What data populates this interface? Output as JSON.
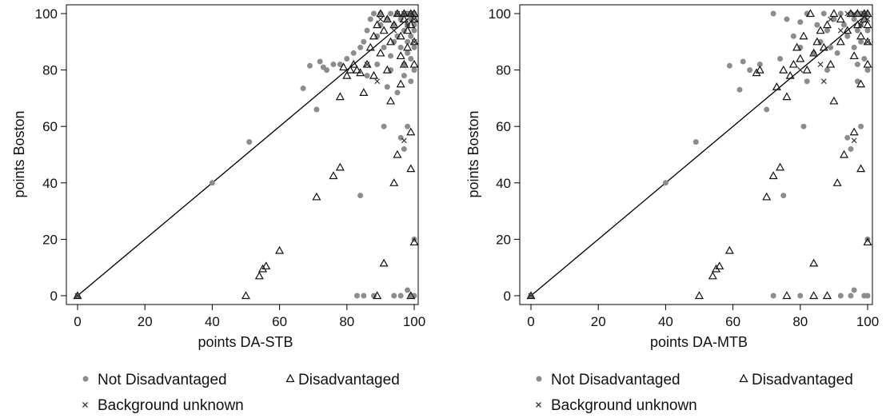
{
  "legend": {
    "not_disadvantaged": "Not Disadvantaged",
    "disadvantaged": "Disadvantaged",
    "background_unknown": "Background unknown"
  },
  "colors": {
    "not_disadvantaged": "#8c8c8c",
    "disadvantaged": "#111111",
    "background_unknown": "#333333",
    "diagonal": "#000000"
  },
  "chart_data": [
    {
      "type": "scatter",
      "xlabel": "points DA-STB",
      "ylabel": "points Boston",
      "xlim": [
        0,
        100
      ],
      "ylim": [
        0,
        100
      ],
      "xticks": [
        0,
        20,
        40,
        60,
        80,
        100
      ],
      "yticks": [
        0,
        20,
        40,
        60,
        80,
        100
      ],
      "grid": false,
      "legend_position": "bottom",
      "reference_line": {
        "from": [
          0,
          0
        ],
        "to": [
          100,
          100
        ]
      },
      "series": [
        {
          "name": "Not Disadvantaged",
          "marker": "circle",
          "points": [
            [
              0,
              0
            ],
            [
              40,
              40
            ],
            [
              51,
              54.5
            ],
            [
              67,
              73.5
            ],
            [
              69,
              81.5
            ],
            [
              71,
              66
            ],
            [
              72,
              83
            ],
            [
              73,
              81
            ],
            [
              74,
              80
            ],
            [
              76,
              82
            ],
            [
              78,
              82
            ],
            [
              80,
              84
            ],
            [
              82,
              86
            ],
            [
              84,
              88
            ],
            [
              84,
              35.5
            ],
            [
              83,
              0
            ],
            [
              85,
              0
            ],
            [
              88,
              0
            ],
            [
              86,
              94
            ],
            [
              87,
              98
            ],
            [
              88,
              100
            ],
            [
              89,
              92
            ],
            [
              90,
              96
            ],
            [
              90,
              100
            ],
            [
              91,
              88
            ],
            [
              91,
              60
            ],
            [
              92,
              98
            ],
            [
              93,
              100
            ],
            [
              93,
              85
            ],
            [
              94,
              96
            ],
            [
              94,
              90
            ],
            [
              95,
              100
            ],
            [
              95,
              92
            ],
            [
              96,
              98
            ],
            [
              96,
              88
            ],
            [
              96,
              56
            ],
            [
              97,
              52
            ],
            [
              97,
              100
            ],
            [
              97,
              94
            ],
            [
              97,
              82
            ],
            [
              97,
              78
            ],
            [
              98,
              100
            ],
            [
              98,
              96
            ],
            [
              98,
              90
            ],
            [
              98,
              86
            ],
            [
              98,
              60
            ],
            [
              98,
              2
            ],
            [
              99,
              100
            ],
            [
              99,
              98
            ],
            [
              99,
              92
            ],
            [
              99,
              84
            ],
            [
              99,
              76
            ],
            [
              99,
              0
            ],
            [
              100,
              100
            ],
            [
              100,
              96
            ],
            [
              100,
              94
            ],
            [
              100,
              88
            ],
            [
              100,
              80
            ],
            [
              100,
              20
            ],
            [
              100,
              0
            ],
            [
              93,
              80
            ],
            [
              95,
              72
            ],
            [
              92,
              74
            ],
            [
              89,
              82
            ],
            [
              86,
              78
            ],
            [
              85,
              90
            ],
            [
              94,
              0
            ],
            [
              96,
              0
            ]
          ]
        },
        {
          "name": "Disadvantaged",
          "marker": "triangle",
          "points": [
            [
              0,
              0
            ],
            [
              50,
              0
            ],
            [
              54,
              7
            ],
            [
              55,
              9.5
            ],
            [
              56,
              10.5
            ],
            [
              60,
              16
            ],
            [
              71,
              35
            ],
            [
              76,
              42.5
            ],
            [
              78,
              45.5
            ],
            [
              78,
              70.5
            ],
            [
              79,
              81
            ],
            [
              80,
              78
            ],
            [
              81,
              80
            ],
            [
              82,
              82
            ],
            [
              83,
              80
            ],
            [
              84,
              79
            ],
            [
              85,
              72
            ],
            [
              86,
              82
            ],
            [
              87,
              88
            ],
            [
              88,
              92
            ],
            [
              88,
              78
            ],
            [
              89,
              96
            ],
            [
              89,
              0
            ],
            [
              90,
              100
            ],
            [
              90,
              86
            ],
            [
              91,
              11.5
            ],
            [
              91,
              94
            ],
            [
              92,
              98
            ],
            [
              92,
              80
            ],
            [
              93,
              90
            ],
            [
              93,
              69
            ],
            [
              94,
              40
            ],
            [
              94,
              96
            ],
            [
              95,
              100
            ],
            [
              95,
              50
            ],
            [
              96,
              92
            ],
            [
              96,
              85
            ],
            [
              96,
              75
            ],
            [
              97,
              98
            ],
            [
              97,
              100
            ],
            [
              98,
              94
            ],
            [
              98,
              88
            ],
            [
              99,
              45
            ],
            [
              99,
              58
            ],
            [
              99,
              100
            ],
            [
              99,
              96
            ],
            [
              100,
              19
            ],
            [
              100,
              100
            ],
            [
              100,
              98
            ],
            [
              100,
              82
            ],
            [
              100,
              90
            ],
            [
              99,
              0
            ],
            [
              97,
              82
            ]
          ]
        },
        {
          "name": "Background unknown",
          "marker": "x",
          "points": [
            [
              0,
              0
            ],
            [
              86,
              82
            ],
            [
              89,
              76
            ],
            [
              90,
              98
            ],
            [
              94,
              94
            ],
            [
              95,
              100
            ],
            [
              97,
              100
            ],
            [
              97,
              55
            ],
            [
              98,
              96
            ],
            [
              99,
              100
            ],
            [
              100,
              90
            ],
            [
              100,
              98
            ]
          ]
        }
      ]
    },
    {
      "type": "scatter",
      "xlabel": "points DA-MTB",
      "ylabel": "points Boston",
      "xlim": [
        0,
        100
      ],
      "ylim": [
        0,
        100
      ],
      "xticks": [
        0,
        20,
        40,
        60,
        80,
        100
      ],
      "yticks": [
        0,
        20,
        40,
        60,
        80,
        100
      ],
      "grid": false,
      "legend_position": "bottom",
      "reference_line": {
        "from": [
          0,
          0
        ],
        "to": [
          100,
          100
        ]
      },
      "series": [
        {
          "name": "Not Disadvantaged",
          "marker": "circle",
          "points": [
            [
              0,
              0
            ],
            [
              40,
              40
            ],
            [
              49,
              54.5
            ],
            [
              59,
              81.5
            ],
            [
              62,
              73
            ],
            [
              63,
              83
            ],
            [
              65,
              80
            ],
            [
              68,
              82
            ],
            [
              70,
              66
            ],
            [
              72,
              100
            ],
            [
              74,
              84
            ],
            [
              75,
              35.5
            ],
            [
              76,
              98
            ],
            [
              78,
              92
            ],
            [
              80,
              88
            ],
            [
              80,
              97
            ],
            [
              81,
              60
            ],
            [
              82,
              100
            ],
            [
              84,
              86
            ],
            [
              85,
              96
            ],
            [
              86,
              90
            ],
            [
              87,
              100
            ],
            [
              88,
              94
            ],
            [
              89,
              88
            ],
            [
              90,
              98
            ],
            [
              91,
              86
            ],
            [
              92,
              100
            ],
            [
              93,
              96
            ],
            [
              94,
              92
            ],
            [
              94,
              56
            ],
            [
              95,
              52
            ],
            [
              95,
              100
            ],
            [
              96,
              98
            ],
            [
              96,
              88
            ],
            [
              96,
              2
            ],
            [
              97,
              100
            ],
            [
              97,
              94
            ],
            [
              97,
              82
            ],
            [
              97,
              76
            ],
            [
              98,
              100
            ],
            [
              98,
              96
            ],
            [
              98,
              90
            ],
            [
              98,
              60
            ],
            [
              99,
              100
            ],
            [
              99,
              98
            ],
            [
              99,
              84
            ],
            [
              99,
              0
            ],
            [
              100,
              100
            ],
            [
              100,
              94
            ],
            [
              100,
              80
            ],
            [
              100,
              20
            ],
            [
              100,
              0
            ],
            [
              72,
              0
            ],
            [
              80,
              0
            ],
            [
              92,
              0
            ],
            [
              95,
              0
            ],
            [
              88,
              80
            ],
            [
              82,
              76
            ]
          ]
        },
        {
          "name": "Disadvantaged",
          "marker": "triangle",
          "points": [
            [
              0,
              0
            ],
            [
              50,
              0
            ],
            [
              54,
              7
            ],
            [
              55,
              9.5
            ],
            [
              56,
              10.5
            ],
            [
              59,
              16
            ],
            [
              67,
              79
            ],
            [
              68,
              80
            ],
            [
              70,
              35
            ],
            [
              72,
              42.5
            ],
            [
              73,
              74
            ],
            [
              74,
              45.5
            ],
            [
              75,
              80
            ],
            [
              76,
              70.5
            ],
            [
              77,
              78
            ],
            [
              78,
              82
            ],
            [
              79,
              88
            ],
            [
              80,
              84
            ],
            [
              81,
              92
            ],
            [
              82,
              80
            ],
            [
              83,
              100
            ],
            [
              84,
              11.5
            ],
            [
              84,
              86
            ],
            [
              85,
              90
            ],
            [
              86,
              94
            ],
            [
              87,
              88
            ],
            [
              88,
              96
            ],
            [
              89,
              82
            ],
            [
              90,
              100
            ],
            [
              90,
              69
            ],
            [
              91,
              40
            ],
            [
              92,
              98
            ],
            [
              92,
              90
            ],
            [
              93,
              50
            ],
            [
              94,
              94
            ],
            [
              95,
              100
            ],
            [
              96,
              85
            ],
            [
              96,
              58
            ],
            [
              97,
              96
            ],
            [
              97,
              100
            ],
            [
              98,
              45
            ],
            [
              98,
              92
            ],
            [
              99,
              100
            ],
            [
              99,
              98
            ],
            [
              100,
              19
            ],
            [
              100,
              100
            ],
            [
              100,
              96
            ],
            [
              100,
              82
            ],
            [
              100,
              90
            ],
            [
              76,
              0
            ],
            [
              84,
              0
            ],
            [
              88,
              0
            ],
            [
              98,
              75
            ]
          ]
        },
        {
          "name": "Background unknown",
          "marker": "x",
          "points": [
            [
              0,
              0
            ],
            [
              80,
              80
            ],
            [
              86,
              82
            ],
            [
              87,
              76
            ],
            [
              89,
              98
            ],
            [
              92,
              94
            ],
            [
              94,
              100
            ],
            [
              96,
              100
            ],
            [
              96,
              55
            ],
            [
              98,
              96
            ],
            [
              99,
              100
            ],
            [
              100,
              90
            ],
            [
              100,
              98
            ]
          ]
        }
      ]
    }
  ]
}
